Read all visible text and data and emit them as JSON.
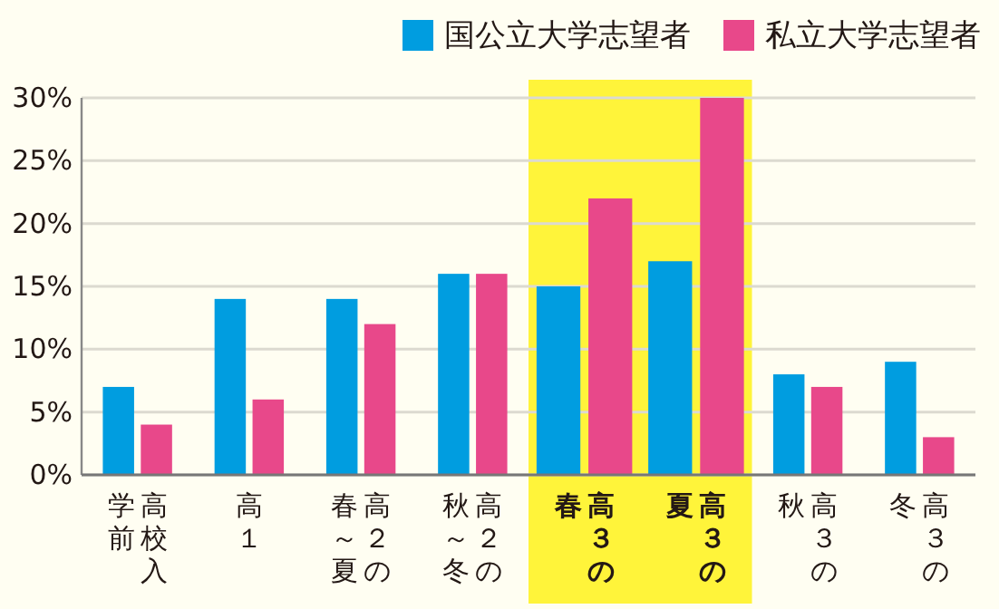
{
  "chart_data": {
    "type": "bar",
    "categories": [
      "高校入学前",
      "高１",
      "高２の春～夏",
      "高２の秋～冬",
      "高３の春",
      "高３の夏",
      "高３の秋",
      "高３の冬"
    ],
    "series": [
      {
        "name": "国公立大学志望者",
        "color": "#009de0",
        "values": [
          7,
          14,
          14,
          16,
          15,
          17,
          8,
          9
        ]
      },
      {
        "name": "私立大学志望者",
        "color": "#e8488a",
        "values": [
          4,
          6,
          12,
          16,
          22,
          30,
          7,
          3
        ]
      }
    ],
    "ylim": [
      0,
      30
    ],
    "yticks": [
      {
        "value": 0,
        "label": "0%"
      },
      {
        "value": 5,
        "label": "5%"
      },
      {
        "value": 10,
        "label": "10%"
      },
      {
        "value": 15,
        "label": "15%"
      },
      {
        "value": 20,
        "label": "20%"
      },
      {
        "value": 25,
        "label": "25%"
      },
      {
        "value": 30,
        "label": "30%"
      }
    ],
    "grid": "y",
    "legend": "top right",
    "bands": [
      {
        "axis": "x",
        "from": "高３の春",
        "to": "高３の夏",
        "color": "#fff43a"
      }
    ]
  }
}
